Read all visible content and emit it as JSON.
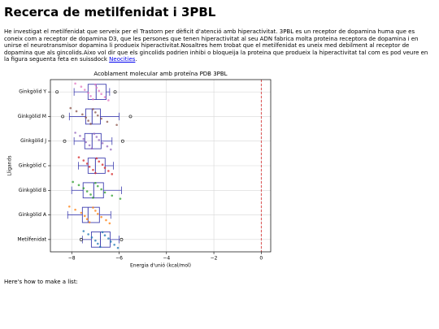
{
  "header": {
    "title": "Recerca de metilfenidat i 3PBL"
  },
  "paragraph": {
    "text_before": "He investigat el metilfenidat que serveix per el Trastorn per dèficit d'atenció amb hiperactivitat. 3PBL es un receptor de dopamina huma que es coneix com a receptor de dopamina D3, que les persones que tenen hiperactivitat al seu ADN fabrica molta proteina receptora de dopamina i en unirse el neurotransmisor dopamina li produeix hiperactivitat.Nosaltres hem trobat que el metilfenidat es uneix med debilment al receptor de dopamina que als gincolids.Aixo vol dir que els gincolids podrien inhibi o bloqueija la proteina que produeix la hiperactivitat tal com es pod veure en la figura seguenta feta en suissdock ",
    "link": "Neocities",
    "text_after": "."
  },
  "chart_data": {
    "type": "boxstrip",
    "title": "Acoblament molecular amb proteïna PDB 3PBL",
    "x_label": "Energia d'unió (kcal/mol)",
    "y_label": "Lligands",
    "xlim": [
      -8.9,
      0.4
    ],
    "xticks": [
      {
        "value": -8,
        "label": "−8"
      },
      {
        "value": -6,
        "label": "−6"
      },
      {
        "value": -4,
        "label": "−4"
      },
      {
        "value": -2,
        "label": "−2"
      },
      0
    ],
    "grid": true,
    "box_color": "#4040b0",
    "reference_line": {
      "x": 0,
      "color": "#d62728"
    },
    "groups": [
      {
        "name": "Ginkgòlid Y",
        "color": "#e377c2",
        "whisker_low": -7.9,
        "q1": -7.31,
        "median": -6.97,
        "q3": -6.55,
        "whisker_high": -6.4,
        "outliers": [
          -8.62,
          -6.17
        ],
        "values": [
          -7.85,
          -7.6,
          -7.45,
          -7.3,
          -7.2,
          -7.1,
          -7.0,
          -6.95,
          -6.85,
          -6.75,
          -6.6,
          -6.45
        ]
      },
      {
        "name": "Ginkgòlid M",
        "color": "#8c564b",
        "whisker_low": -8.1,
        "q1": -7.41,
        "median": -7.14,
        "q3": -6.79,
        "whisker_high": -6.0,
        "outliers": [
          -8.38,
          -5.52
        ],
        "values": [
          -8.05,
          -7.8,
          -7.55,
          -7.4,
          -7.3,
          -7.2,
          -7.1,
          -7.0,
          -6.9,
          -6.75,
          -6.5,
          -6.1
        ]
      },
      {
        "name": "Ginkgòlid J",
        "color": "#9467bd",
        "whisker_low": -7.9,
        "q1": -7.45,
        "median": -7.14,
        "q3": -6.76,
        "whisker_high": -6.3,
        "outliers": [
          -8.3,
          -5.85
        ],
        "values": [
          -7.85,
          -7.65,
          -7.5,
          -7.4,
          -7.25,
          -7.15,
          -7.05,
          -6.95,
          -6.85,
          -6.7,
          -6.5,
          -6.35
        ]
      },
      {
        "name": "Ginkgòlid C",
        "color": "#d62728",
        "whisker_low": -7.72,
        "q1": -7.31,
        "median": -7.0,
        "q3": -6.59,
        "whisker_high": -6.24,
        "outliers": [],
        "values": [
          -7.7,
          -7.5,
          -7.35,
          -7.25,
          -7.1,
          -7.0,
          -6.95,
          -6.85,
          -6.7,
          -6.6,
          -6.45,
          -6.3
        ]
      },
      {
        "name": "Ginkgòlid B",
        "color": "#2ca02c",
        "whisker_low": -8.0,
        "q1": -7.52,
        "median": -7.07,
        "q3": -6.66,
        "whisker_high": -5.9,
        "outliers": [],
        "values": [
          -7.95,
          -7.7,
          -7.5,
          -7.35,
          -7.2,
          -7.1,
          -7.0,
          -6.9,
          -6.75,
          -6.6,
          -6.3,
          -5.95
        ]
      },
      {
        "name": "Ginkgòlid A",
        "color": "#ff7f0e",
        "whisker_low": -8.17,
        "q1": -7.55,
        "median": -7.31,
        "q3": -6.83,
        "whisker_high": -6.35,
        "outliers": [],
        "values": [
          -8.1,
          -7.85,
          -7.6,
          -7.45,
          -7.35,
          -7.25,
          -7.1,
          -7.0,
          -6.9,
          -6.75,
          -6.55,
          -6.4
        ]
      },
      {
        "name": "Metilfenidat",
        "color": "#1f77b4",
        "whisker_low": -7.55,
        "q1": -7.17,
        "median": -6.79,
        "q3": -6.38,
        "whisker_high": -6.0,
        "outliers": [
          -7.6,
          -5.9
        ],
        "values": [
          -7.5,
          -7.3,
          -7.15,
          -7.0,
          -6.9,
          -6.8,
          -6.7,
          -6.6,
          -6.45,
          -6.35,
          -6.2,
          -6.05
        ]
      }
    ]
  }
}
